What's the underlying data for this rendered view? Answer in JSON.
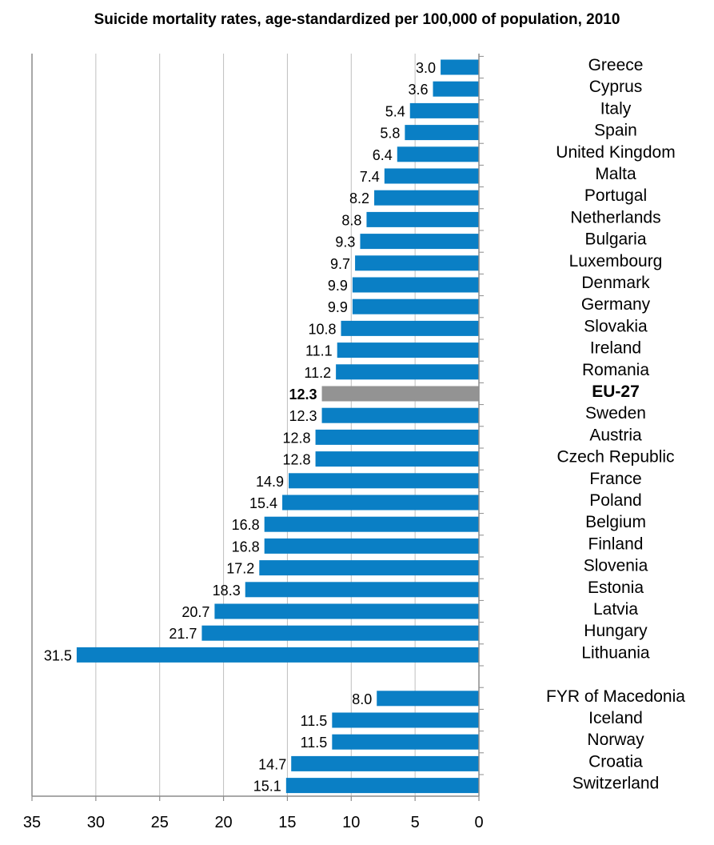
{
  "chart_data": {
    "type": "bar",
    "orientation": "horizontal",
    "title": "Suicide mortality rates, age-standardized per 100,000 of population, 2010",
    "xlabel": "",
    "ylabel": "",
    "xlim": [
      0,
      35
    ],
    "x_axis_reversed": true,
    "x_ticks": [
      "35",
      "30",
      "25",
      "20",
      "15",
      "10",
      "5",
      "0"
    ],
    "grid": "vertical",
    "colors": {
      "bar": "#0a7fc5",
      "highlight": "#939393",
      "grid": "#bfbfbf",
      "axis": "#8c8c8c"
    },
    "groups": [
      {
        "rows": [
          {
            "label": "Greece",
            "value": 3.0,
            "value_label": "3.0"
          },
          {
            "label": "Cyprus",
            "value": 3.6,
            "value_label": "3.6"
          },
          {
            "label": "Italy",
            "value": 5.4,
            "value_label": "5.4"
          },
          {
            "label": "Spain",
            "value": 5.8,
            "value_label": "5.8"
          },
          {
            "label": "United Kingdom",
            "value": 6.4,
            "value_label": "6.4"
          },
          {
            "label": "Malta",
            "value": 7.4,
            "value_label": "7.4"
          },
          {
            "label": "Portugal",
            "value": 8.2,
            "value_label": "8.2"
          },
          {
            "label": "Netherlands",
            "value": 8.8,
            "value_label": "8.8"
          },
          {
            "label": "Bulgaria",
            "value": 9.3,
            "value_label": "9.3"
          },
          {
            "label": "Luxembourg",
            "value": 9.7,
            "value_label": "9.7"
          },
          {
            "label": "Denmark",
            "value": 9.9,
            "value_label": "9.9"
          },
          {
            "label": "Germany",
            "value": 9.9,
            "value_label": "9.9"
          },
          {
            "label": "Slovakia",
            "value": 10.8,
            "value_label": "10.8"
          },
          {
            "label": "Ireland",
            "value": 11.1,
            "value_label": "11.1"
          },
          {
            "label": "Romania",
            "value": 11.2,
            "value_label": "11.2"
          },
          {
            "label": "EU-27",
            "value": 12.3,
            "value_label": "12.3",
            "highlight": true
          },
          {
            "label": "Sweden",
            "value": 12.3,
            "value_label": "12.3"
          },
          {
            "label": "Austria",
            "value": 12.8,
            "value_label": "12.8"
          },
          {
            "label": "Czech Republic",
            "value": 12.8,
            "value_label": "12.8"
          },
          {
            "label": "France",
            "value": 14.9,
            "value_label": "14.9"
          },
          {
            "label": "Poland",
            "value": 15.4,
            "value_label": "15.4"
          },
          {
            "label": "Belgium",
            "value": 16.8,
            "value_label": "16.8"
          },
          {
            "label": "Finland",
            "value": 16.8,
            "value_label": "16.8"
          },
          {
            "label": "Slovenia",
            "value": 17.2,
            "value_label": "17.2"
          },
          {
            "label": "Estonia",
            "value": 18.3,
            "value_label": "18.3"
          },
          {
            "label": "Latvia",
            "value": 20.7,
            "value_label": "20.7"
          },
          {
            "label": "Hungary",
            "value": 21.7,
            "value_label": "21.7"
          },
          {
            "label": "Lithuania",
            "value": 31.5,
            "value_label": "31.5"
          }
        ]
      },
      {
        "rows": [
          {
            "label": "FYR of Macedonia",
            "value": 8.0,
            "value_label": "8.0"
          },
          {
            "label": "Iceland",
            "value": 11.5,
            "value_label": "11.5"
          },
          {
            "label": "Norway",
            "value": 11.5,
            "value_label": "11.5"
          },
          {
            "label": "Croatia",
            "value": 14.7,
            "value_label": "14.7"
          },
          {
            "label": "Switzerland",
            "value": 15.1,
            "value_label": "15.1"
          }
        ]
      }
    ]
  }
}
